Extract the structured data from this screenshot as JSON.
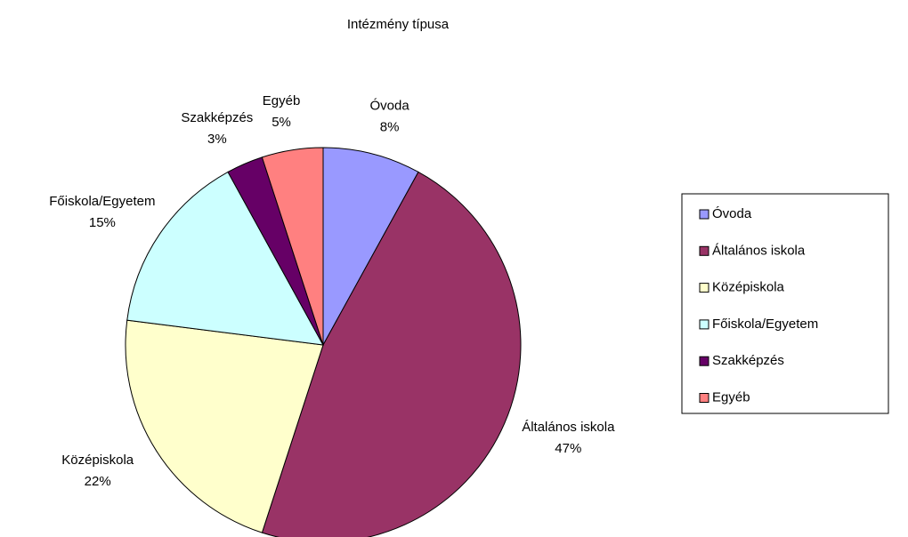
{
  "chart_data": {
    "type": "pie",
    "title": "Intézmény típusa",
    "categories": [
      "Óvoda",
      "Általános iskola",
      "Középiskola",
      "Főiskola/Egyetem",
      "Szakképzés",
      "Egyéb"
    ],
    "values": [
      8,
      47,
      22,
      15,
      3,
      5
    ],
    "value_labels": [
      "8%",
      "47%",
      "22%",
      "15%",
      "3%",
      "5%"
    ],
    "colors": [
      "#9999ff",
      "#993366",
      "#ffffcc",
      "#ccffff",
      "#660066",
      "#ff8080"
    ],
    "legend": "right"
  }
}
